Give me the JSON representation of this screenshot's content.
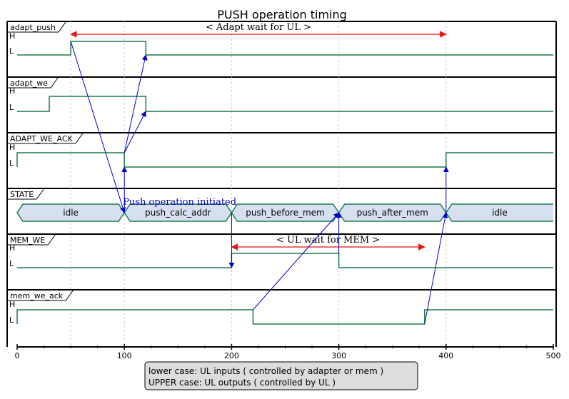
{
  "title": "PUSH operation timing",
  "time_axis": {
    "min": 0,
    "max": 500,
    "ticks": [
      0,
      100,
      200,
      300,
      400,
      500
    ]
  },
  "gridlines": [
    50,
    100,
    200,
    300,
    400
  ],
  "level_labels": {
    "high": "H",
    "low": "L"
  },
  "signals": [
    {
      "id": "adapt_push",
      "label": "adapt_push",
      "type": "binary",
      "initial": 0,
      "changes": [
        {
          "t": 50,
          "v": 1
        },
        {
          "t": 120,
          "v": 0
        }
      ]
    },
    {
      "id": "adapt_we",
      "label": "adapt_we",
      "type": "binary",
      "initial": 0,
      "changes": [
        {
          "t": 30,
          "v": 1
        },
        {
          "t": 120,
          "v": 0
        }
      ]
    },
    {
      "id": "ADAPT_WE_ACK",
      "label": "ADAPT_WE_ACK",
      "type": "binary",
      "initial": 1,
      "changes": [
        {
          "t": 100,
          "v": 0
        },
        {
          "t": 400,
          "v": 1
        }
      ]
    },
    {
      "id": "STATE",
      "label": "STATE",
      "type": "bus",
      "segments": [
        {
          "start": 0,
          "end": 100,
          "value": "idle"
        },
        {
          "start": 100,
          "end": 200,
          "value": "push_calc_addr"
        },
        {
          "start": 200,
          "end": 300,
          "value": "push_before_mem"
        },
        {
          "start": 300,
          "end": 400,
          "value": "push_after_mem"
        },
        {
          "start": 400,
          "end": 500,
          "value": "idle"
        }
      ]
    },
    {
      "id": "MEM_WE",
      "label": "MEM_WE",
      "type": "binary",
      "initial": 0,
      "changes": [
        {
          "t": 200,
          "v": 1
        },
        {
          "t": 300,
          "v": 0
        }
      ]
    },
    {
      "id": "mem_we_ack",
      "label": "mem_we_ack",
      "type": "binary",
      "initial": 1,
      "changes": [
        {
          "t": 220,
          "v": 0
        },
        {
          "t": 380,
          "v": 1
        }
      ]
    }
  ],
  "constraints": [
    {
      "signal": "adapt_push",
      "from": 50,
      "to": 400,
      "label": "< Adapt wait for UL >"
    },
    {
      "signal": "MEM_WE",
      "from": 200,
      "to": 380,
      "label": "< UL wait for MEM >"
    }
  ],
  "arrows": [
    {
      "from_signal": "adapt_push",
      "from_t": 50,
      "from_level": "high",
      "to_signal": "STATE",
      "to_t": 100
    },
    {
      "from_signal": "ADAPT_WE_ACK",
      "from_t": 100,
      "from_level": "high",
      "to_signal": "adapt_push",
      "to_t": 120,
      "to_level": "low"
    },
    {
      "from_signal": "ADAPT_WE_ACK",
      "from_t": 100,
      "from_level": "high",
      "to_signal": "adapt_we",
      "to_t": 120,
      "to_level": "low"
    },
    {
      "from_signal": "STATE",
      "from_t": 100,
      "to_signal": "ADAPT_WE_ACK",
      "to_t": 100,
      "to_level": "low"
    },
    {
      "from_signal": "STATE",
      "from_t": 200,
      "to_signal": "MEM_WE",
      "to_t": 200,
      "to_level": "low"
    },
    {
      "from_signal": "mem_we_ack",
      "from_t": 220,
      "from_level": "high",
      "to_signal": "STATE",
      "to_t": 300
    },
    {
      "from_signal": "MEM_WE",
      "from_t": 300,
      "from_level": "high",
      "to_signal": "STATE",
      "to_t": 300
    },
    {
      "from_signal": "mem_we_ack",
      "from_t": 380,
      "from_level": "low",
      "to_signal": "STATE",
      "to_t": 400
    },
    {
      "from_signal": "STATE",
      "from_t": 400,
      "to_signal": "ADAPT_WE_ACK",
      "to_t": 400,
      "to_level": "low"
    }
  ],
  "notes": [
    {
      "signal": "STATE",
      "t": 100,
      "text": "Push operation initiated"
    }
  ],
  "legend": [
    "lower case: UL inputs ( controlled by adapter or mem )",
    "UPPER case: UL outputs ( controlled by UL )"
  ],
  "colors": {
    "waveform": "#1f7a4c",
    "bus_fill": "#d6e0f0",
    "constraint": "#ee1111",
    "arrow": "#0000cc",
    "grid": "#cccccc",
    "legend_fill": "#dddddd"
  }
}
